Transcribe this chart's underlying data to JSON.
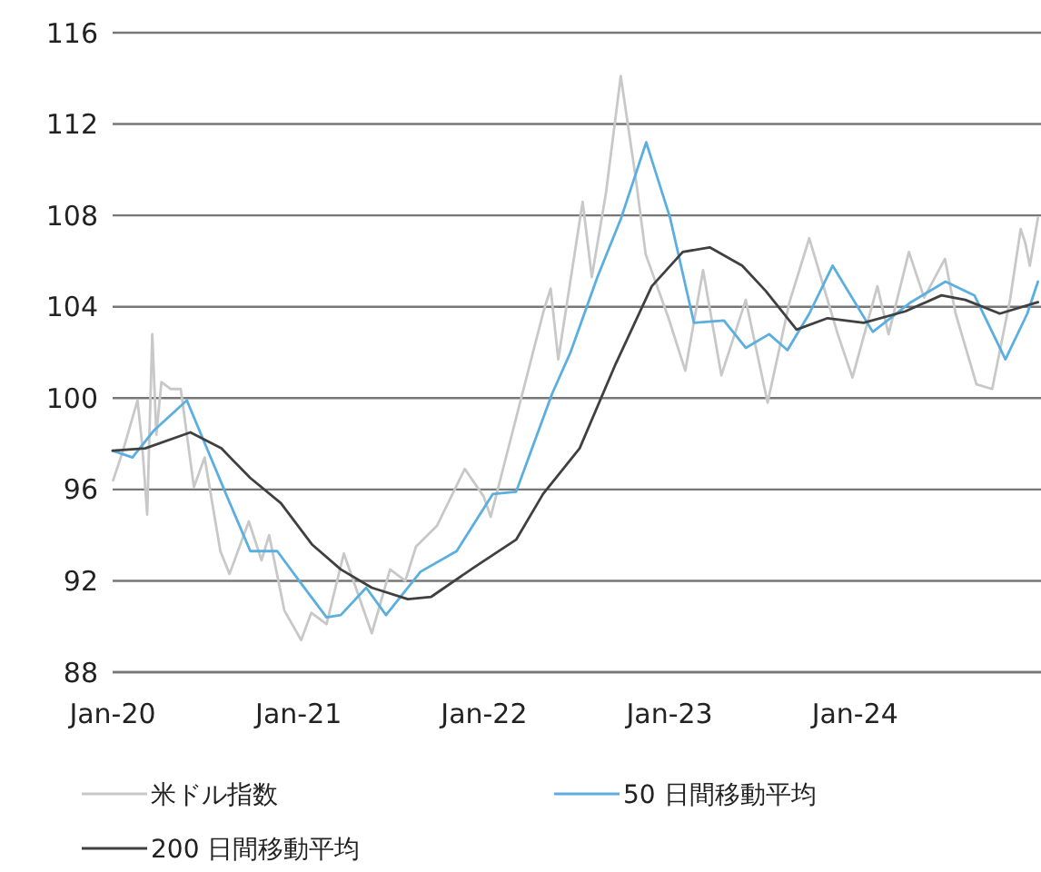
{
  "chart_data": {
    "type": "line",
    "xlim": [
      "2020-01-01",
      "2025-01-01"
    ],
    "xticks": [
      {
        "value": "2020-01-01",
        "label": "Jan-20"
      },
      {
        "value": "2021-01-01",
        "label": "Jan-21"
      },
      {
        "value": "2022-01-01",
        "label": "Jan-22"
      },
      {
        "value": "2023-01-01",
        "label": "Jan-23"
      },
      {
        "value": "2024-01-01",
        "label": "Jan-24"
      }
    ],
    "ylim": [
      88,
      116
    ],
    "yticks": [
      88,
      92,
      96,
      100,
      104,
      108,
      112,
      116
    ],
    "grid": "y",
    "legend": "bottom",
    "line_style": "solid",
    "marker": "none",
    "series": [
      {
        "name": "米ドル指数",
        "color": "#c8c8c8",
        "x": [
          "2020-01-02",
          "2020-01-20",
          "2020-02-19",
          "2020-02-28",
          "2020-03-09",
          "2020-03-19",
          "2020-03-27",
          "2020-04-06",
          "2020-04-24",
          "2020-05-14",
          "2020-06-09",
          "2020-06-30",
          "2020-07-31",
          "2020-08-18",
          "2020-09-25",
          "2020-10-20",
          "2020-11-04",
          "2020-12-04",
          "2021-01-06",
          "2021-01-26",
          "2021-02-25",
          "2021-03-31",
          "2021-05-25",
          "2021-06-30",
          "2021-07-30",
          "2021-08-20",
          "2021-09-30",
          "2021-11-24",
          "2021-12-31",
          "2022-01-14",
          "2022-03-07",
          "2022-04-28",
          "2022-05-12",
          "2022-05-27",
          "2022-07-14",
          "2022-08-01",
          "2022-08-29",
          "2022-09-27",
          "2022-10-26",
          "2022-11-15",
          "2022-12-30",
          "2023-02-01",
          "2023-03-08",
          "2023-04-13",
          "2023-05-31",
          "2023-07-13",
          "2023-08-25",
          "2023-10-03",
          "2023-11-28",
          "2023-12-27",
          "2024-02-14",
          "2024-03-07",
          "2024-04-16",
          "2024-05-16",
          "2024-06-26",
          "2024-07-17",
          "2024-08-27",
          "2024-09-27",
          "2024-11-01",
          "2024-11-22",
          "2024-12-01",
          "2024-12-10",
          "2024-12-26"
        ],
        "values": [
          96.4,
          97.6,
          99.9,
          98.0,
          94.9,
          102.8,
          98.4,
          100.7,
          100.4,
          100.4,
          96.1,
          97.4,
          93.3,
          92.3,
          94.6,
          92.9,
          94.0,
          90.7,
          89.4,
          90.6,
          90.1,
          93.2,
          89.7,
          92.5,
          92.0,
          93.5,
          94.4,
          96.9,
          95.7,
          94.8,
          99.3,
          103.8,
          104.8,
          101.7,
          108.6,
          105.3,
          109.0,
          114.1,
          109.7,
          106.3,
          103.5,
          101.2,
          105.6,
          101.0,
          104.3,
          99.8,
          104.2,
          107.0,
          102.8,
          100.9,
          104.9,
          102.8,
          106.4,
          104.4,
          106.1,
          103.7,
          100.6,
          100.4,
          104.3,
          107.4,
          106.8,
          105.8,
          107.9
        ]
      },
      {
        "name": "50 日間移動平均",
        "color": "#5aafe0",
        "x": [
          "2020-01-01",
          "2020-02-09",
          "2020-03-23",
          "2020-05-26",
          "2020-08-13",
          "2020-09-28",
          "2020-11-20",
          "2021-01-02",
          "2021-02-25",
          "2021-03-25",
          "2021-05-14",
          "2021-06-22",
          "2021-08-29",
          "2021-11-08",
          "2022-01-18",
          "2022-03-05",
          "2022-05-15",
          "2022-06-20",
          "2022-08-12",
          "2022-09-28",
          "2022-11-16",
          "2023-01-02",
          "2023-02-18",
          "2023-04-18",
          "2023-05-31",
          "2023-07-16",
          "2023-08-21",
          "2023-10-03",
          "2023-11-18",
          "2024-02-05",
          "2024-04-20",
          "2024-06-27",
          "2024-08-23",
          "2024-10-23",
          "2024-12-05",
          "2024-12-26"
        ],
        "values": [
          97.7,
          97.4,
          98.6,
          99.9,
          95.7,
          93.3,
          93.3,
          92.0,
          90.4,
          90.5,
          91.7,
          90.5,
          92.4,
          93.3,
          95.8,
          95.9,
          100.2,
          102.0,
          105.3,
          107.9,
          111.2,
          107.9,
          103.3,
          103.4,
          102.2,
          102.8,
          102.1,
          103.7,
          105.8,
          102.9,
          104.2,
          105.1,
          104.5,
          101.7,
          103.7,
          105.1
        ]
      },
      {
        "name": "200 日間移動平均",
        "color": "#404040",
        "x": [
          "2020-01-01",
          "2020-03-05",
          "2020-06-02",
          "2020-08-02",
          "2020-09-28",
          "2020-11-27",
          "2021-01-27",
          "2021-03-25",
          "2021-05-25",
          "2021-08-04",
          "2021-09-19",
          "2021-12-13",
          "2022-03-05",
          "2022-04-27",
          "2022-07-08",
          "2022-09-17",
          "2022-11-27",
          "2023-01-27",
          "2023-03-21",
          "2023-05-24",
          "2023-07-09",
          "2023-09-08",
          "2023-11-08",
          "2024-01-18",
          "2024-04-09",
          "2024-06-19",
          "2024-08-05",
          "2024-10-12",
          "2024-12-26"
        ],
        "values": [
          97.7,
          97.8,
          98.5,
          97.8,
          96.5,
          95.4,
          93.6,
          92.5,
          91.7,
          91.2,
          91.3,
          92.6,
          93.8,
          95.8,
          97.8,
          101.5,
          104.9,
          106.4,
          106.6,
          105.8,
          104.7,
          103.0,
          103.5,
          103.3,
          103.8,
          104.5,
          104.3,
          103.7,
          104.2
        ]
      }
    ]
  }
}
